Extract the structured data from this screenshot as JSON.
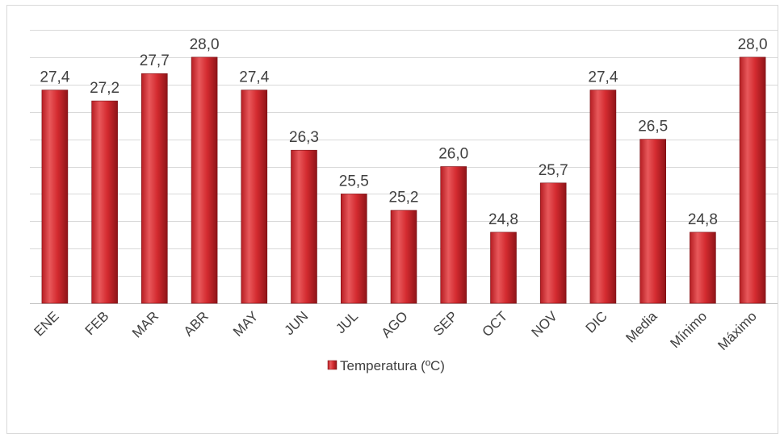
{
  "chart_data": {
    "type": "bar",
    "categories": [
      "ENE",
      "FEB",
      "MAR",
      "ABR",
      "MAY",
      "JUN",
      "JUL",
      "AGO",
      "SEP",
      "OCT",
      "NOV",
      "DIC",
      "Media",
      "Mínimo",
      "Máximo"
    ],
    "series": [
      {
        "name": "Temperatura (ºC)",
        "values": [
          27.4,
          27.2,
          27.7,
          28.0,
          27.4,
          26.3,
          25.5,
          25.2,
          26.0,
          24.8,
          25.7,
          27.4,
          26.5,
          24.8,
          28.0
        ],
        "labels": [
          "27,4",
          "27,2",
          "27,7",
          "28,0",
          "27,4",
          "26,3",
          "25,5",
          "25,2",
          "26,0",
          "24,8",
          "25,7",
          "27,4",
          "26,5",
          "24,8",
          "28,0"
        ]
      }
    ],
    "ylim": [
      23.5,
      28.5
    ],
    "grid": true,
    "legend_position": "bottom",
    "colors": {
      "bar_light": "#e8585b",
      "bar_mid": "#d42b30",
      "bar_dark": "#8e1418",
      "bar_edge": "#7a1014",
      "grid": "#d9d9d9"
    }
  }
}
